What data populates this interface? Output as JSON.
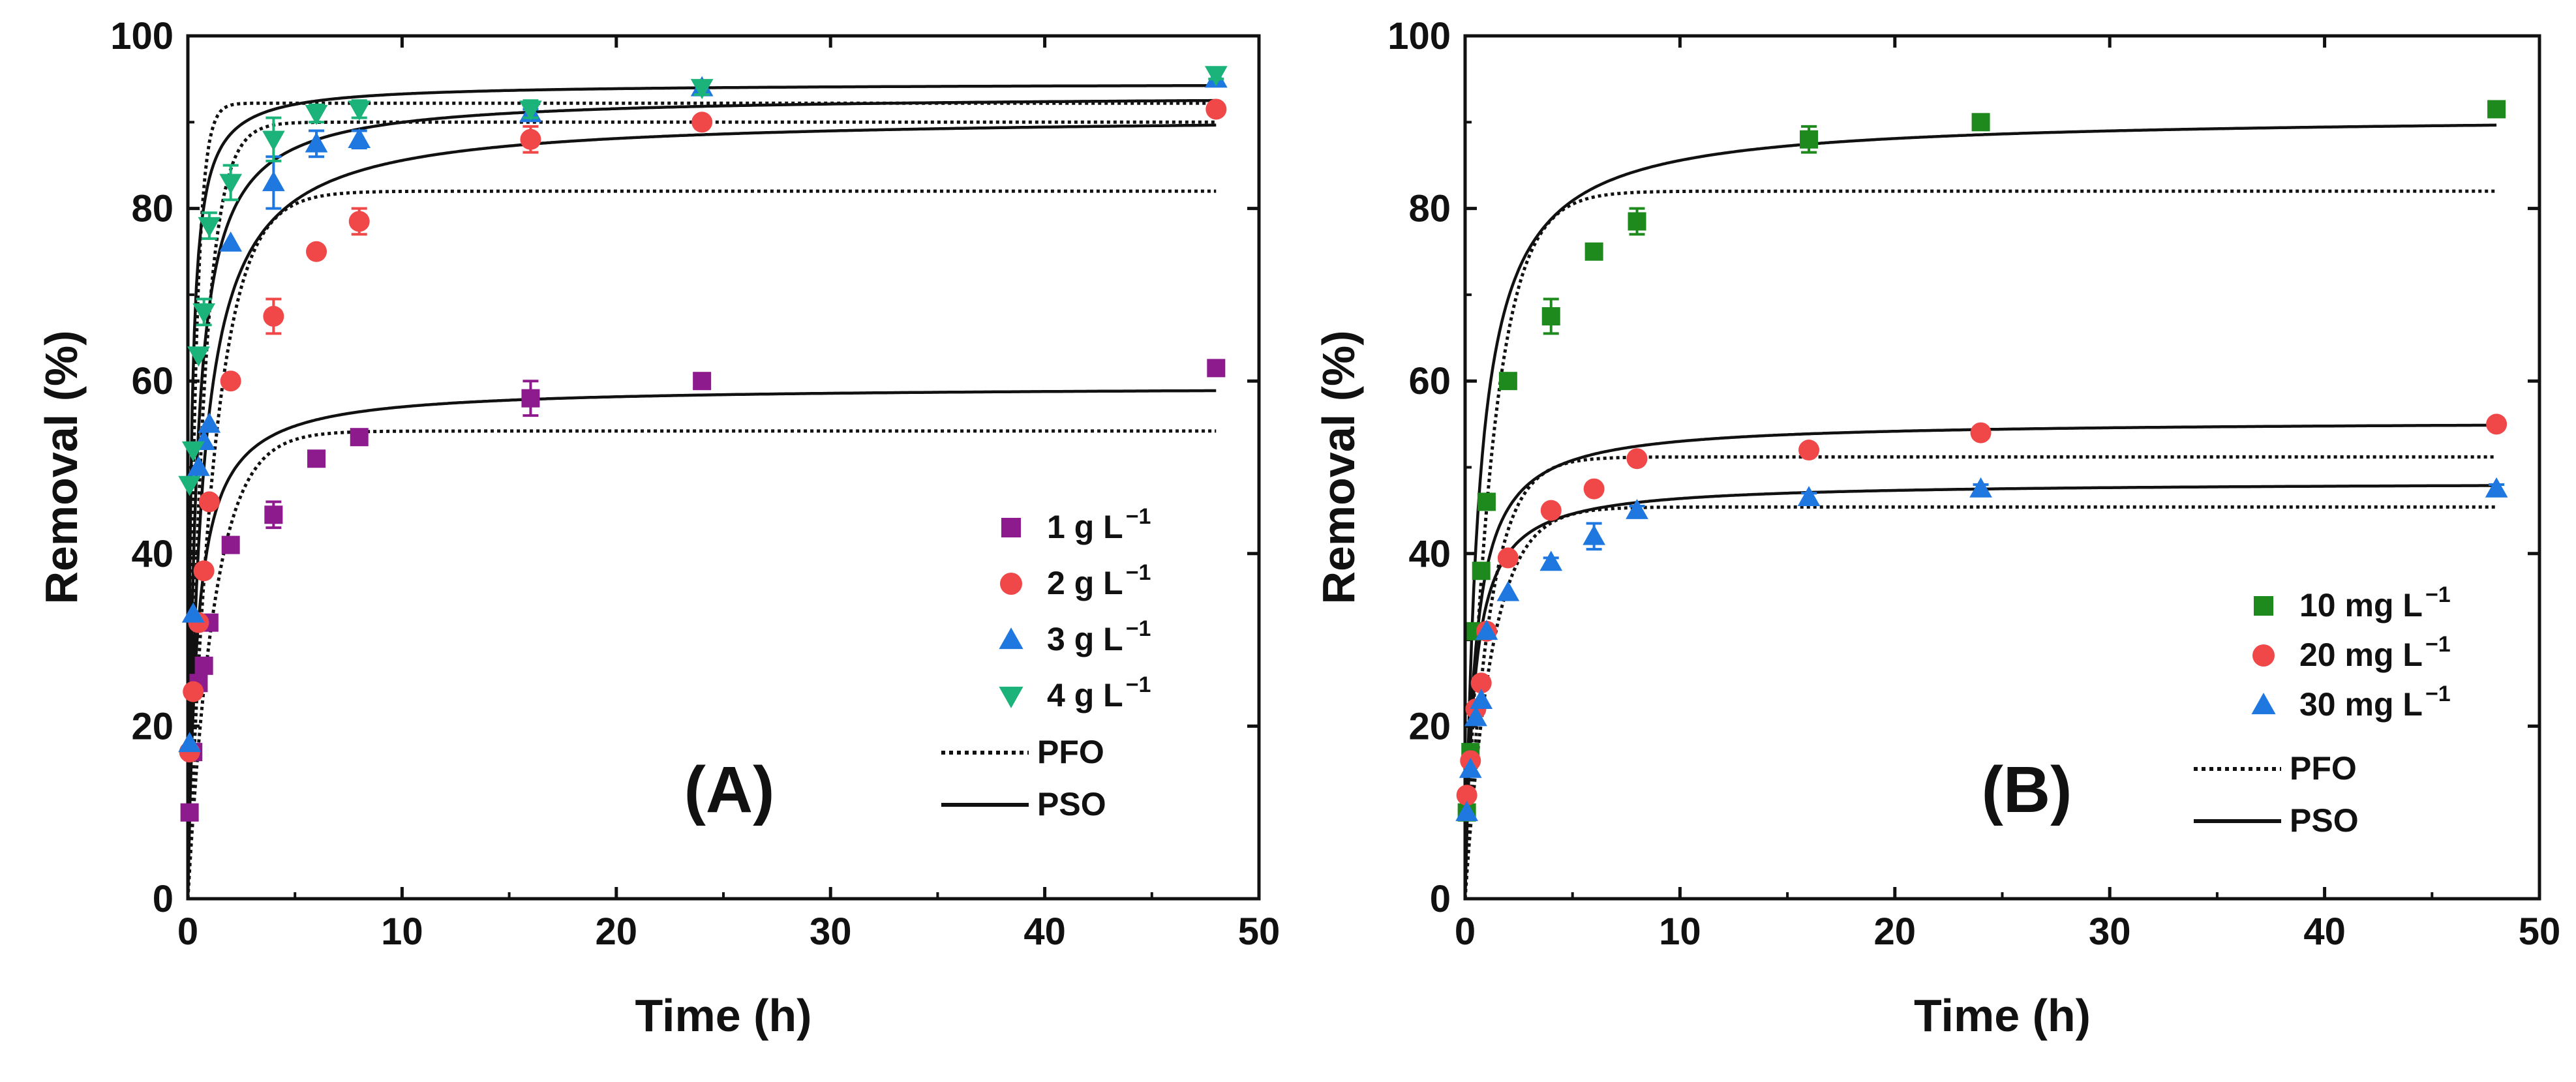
{
  "chart_data": [
    {
      "type": "scatter",
      "panel_label": "(A)",
      "xlabel": "Time (h)",
      "ylabel": "Removal (%)",
      "xlim": [
        0,
        50
      ],
      "ylim": [
        0,
        100
      ],
      "x_ticks": [
        0,
        10,
        20,
        30,
        40,
        50
      ],
      "y_ticks": [
        0,
        20,
        40,
        60,
        80,
        100
      ],
      "x_tick_labels": [
        "0",
        "10",
        "20",
        "30",
        "40",
        "50"
      ],
      "y_tick_labels": [
        "0",
        "20",
        "40",
        "60",
        "80",
        "100"
      ],
      "grid": false,
      "legend_position": "right",
      "series": [
        {
          "name": "1 g L",
          "sup": "−1",
          "marker": "square",
          "color": "#8e1b8e",
          "x": [
            0.08,
            0.25,
            0.5,
            0.75,
            1,
            2,
            4,
            6,
            8,
            16,
            24,
            48
          ],
          "y": [
            10,
            17,
            25,
            27,
            32,
            41,
            44.5,
            51,
            53.5,
            58,
            60,
            61.5
          ],
          "yerr": [
            0,
            0,
            0,
            0,
            0,
            0,
            1.5,
            0,
            0.8,
            2.0,
            0,
            0
          ],
          "pfo": {
            "qe": 54.2,
            "k": 0.8
          },
          "pso": {
            "qe": 59.4,
            "k": 0.04
          }
        },
        {
          "name": "2 g L",
          "sup": "−1",
          "marker": "circle",
          "color": "#f04848",
          "x": [
            0.08,
            0.25,
            0.5,
            0.75,
            1,
            2,
            4,
            6,
            8,
            16,
            24,
            48
          ],
          "y": [
            17,
            24,
            32,
            38,
            46,
            60,
            67.5,
            75,
            78.5,
            88,
            90,
            91.5
          ],
          "yerr": [
            0,
            0,
            0,
            0,
            0,
            0,
            2.0,
            0,
            1.5,
            1.5,
            0,
            0
          ],
          "pfo": {
            "qe": 82.0,
            "k": 0.8
          },
          "pso": {
            "qe": 90.8,
            "k": 0.018
          }
        },
        {
          "name": "3 g L",
          "sup": "−1",
          "marker": "triangle-up",
          "color": "#1f78e0",
          "x": [
            0.08,
            0.25,
            0.5,
            0.75,
            1,
            2,
            4,
            6,
            8,
            16,
            24,
            48
          ],
          "y": [
            18,
            33,
            50,
            53,
            55,
            76,
            83,
            87.5,
            88,
            91,
            94,
            95
          ],
          "yerr": [
            0,
            0,
            0,
            0,
            0,
            0,
            3.0,
            1.5,
            1.0,
            0.5,
            0.5,
            0
          ],
          "pfo": {
            "qe": 90.0,
            "k": 1.4
          },
          "pso": {
            "qe": 93.2,
            "k": 0.03
          }
        },
        {
          "name": "4 g L",
          "sup": "−1",
          "marker": "triangle-down",
          "color": "#1bb37a",
          "x": [
            0.08,
            0.25,
            0.5,
            0.75,
            1,
            2,
            4,
            6,
            8,
            16,
            24,
            48
          ],
          "y": [
            48,
            52,
            63,
            68,
            78,
            83,
            88,
            91,
            91.5,
            91.5,
            94,
            95.5
          ],
          "yerr": [
            0,
            0,
            0,
            1.5,
            1.5,
            2.0,
            2.5,
            1.0,
            1.0,
            1.0,
            0.8,
            0.5
          ],
          "pfo": {
            "qe": 92.2,
            "k": 3.0
          },
          "pso": {
            "qe": 94.5,
            "k": 0.08
          }
        }
      ],
      "fit_legend": [
        {
          "name": "PFO",
          "style": "dotted"
        },
        {
          "name": "PSO",
          "style": "solid"
        }
      ]
    },
    {
      "type": "scatter",
      "panel_label": "(B)",
      "xlabel": "Time (h)",
      "ylabel": "Removal (%)",
      "xlim": [
        0,
        50
      ],
      "ylim": [
        0,
        100
      ],
      "x_ticks": [
        0,
        10,
        20,
        30,
        40,
        50
      ],
      "y_ticks": [
        0,
        20,
        40,
        60,
        80,
        100
      ],
      "x_tick_labels": [
        "0",
        "10",
        "20",
        "30",
        "40",
        "50"
      ],
      "y_tick_labels": [
        "0",
        "20",
        "40",
        "60",
        "80",
        "100"
      ],
      "grid": false,
      "legend_position": "right",
      "series": [
        {
          "name": "10 mg L",
          "sup": "−1",
          "marker": "square",
          "color": "#1e8a1e",
          "x": [
            0.08,
            0.25,
            0.5,
            0.75,
            1,
            2,
            4,
            6,
            8,
            16,
            24,
            48
          ],
          "y": [
            10,
            17,
            31,
            38,
            46,
            60,
            67.5,
            75,
            78.5,
            88,
            90,
            91.5
          ],
          "yerr": [
            0,
            0,
            0,
            0,
            0,
            0,
            2.0,
            0,
            1.5,
            1.5,
            0,
            0
          ],
          "pfo": {
            "qe": 82.0,
            "k": 0.8
          },
          "pso": {
            "qe": 90.8,
            "k": 0.018
          }
        },
        {
          "name": "20 mg L",
          "sup": "−1",
          "marker": "circle",
          "color": "#f04848",
          "x": [
            0.08,
            0.25,
            0.5,
            0.75,
            1,
            2,
            4,
            6,
            8,
            16,
            24,
            48
          ],
          "y": [
            12,
            16,
            22,
            25,
            31,
            39.5,
            45,
            47.5,
            51,
            52,
            54,
            55
          ],
          "yerr": [
            0,
            0,
            0,
            0,
            0,
            0,
            0,
            0,
            0,
            0,
            0,
            0
          ],
          "pfo": {
            "qe": 51.2,
            "k": 0.9
          },
          "pso": {
            "qe": 55.4,
            "k": 0.04
          }
        },
        {
          "name": "30 mg L",
          "sup": "−1",
          "marker": "triangle-up",
          "color": "#1f78e0",
          "x": [
            0.08,
            0.25,
            0.5,
            0.75,
            1,
            2,
            4,
            6,
            8,
            16,
            24,
            48
          ],
          "y": [
            10,
            15,
            21,
            23,
            31,
            35.5,
            39,
            42,
            45,
            46.5,
            47.5,
            47.5
          ],
          "yerr": [
            0,
            0,
            0,
            0,
            0,
            0,
            0.5,
            1.5,
            0.5,
            0.5,
            0.5,
            0.5
          ],
          "pfo": {
            "qe": 45.4,
            "k": 0.8
          },
          "pso": {
            "qe": 48.3,
            "k": 0.05
          }
        }
      ],
      "fit_legend": [
        {
          "name": "PFO",
          "style": "dotted"
        },
        {
          "name": "PSO",
          "style": "solid"
        }
      ]
    }
  ]
}
